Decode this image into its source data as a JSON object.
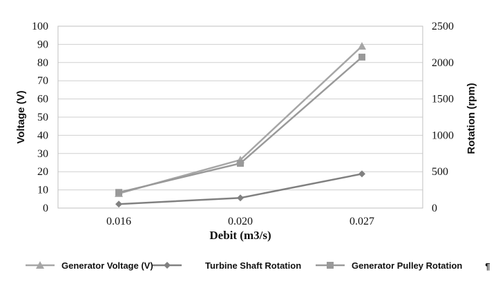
{
  "chart_data": {
    "type": "line",
    "title": "",
    "xlabel": "Debit (m3/s)",
    "ylabel": "Voltage (V)",
    "y2label": "Rotation (rpm)",
    "categories": [
      "0.016",
      "0.020",
      "0.027"
    ],
    "ylim": [
      0,
      100
    ],
    "y2lim": [
      0,
      2500
    ],
    "yticks": [
      "0",
      "10",
      "20",
      "30",
      "40",
      "50",
      "60",
      "70",
      "80",
      "90",
      "100"
    ],
    "y2ticks": [
      "0",
      "500",
      "1000",
      "1500",
      "2000",
      "2500"
    ],
    "grid": true,
    "legend_position": "bottom",
    "series": [
      {
        "name": "Generator Voltage (V)",
        "axis": "left",
        "marker": "triangle",
        "color": "#a6a6a6",
        "values": [
          8,
          26.5,
          89
        ]
      },
      {
        "name": "Turbine Shaft Rotation",
        "axis": "right",
        "marker": "diamond",
        "color": "#808080",
        "values": [
          55,
          140,
          470
        ]
      },
      {
        "name": "Generator Pulley Rotation",
        "axis": "right",
        "marker": "square",
        "color": "#999999",
        "values": [
          215,
          615,
          2075
        ]
      }
    ],
    "legend_trailing_mark": "¶"
  }
}
